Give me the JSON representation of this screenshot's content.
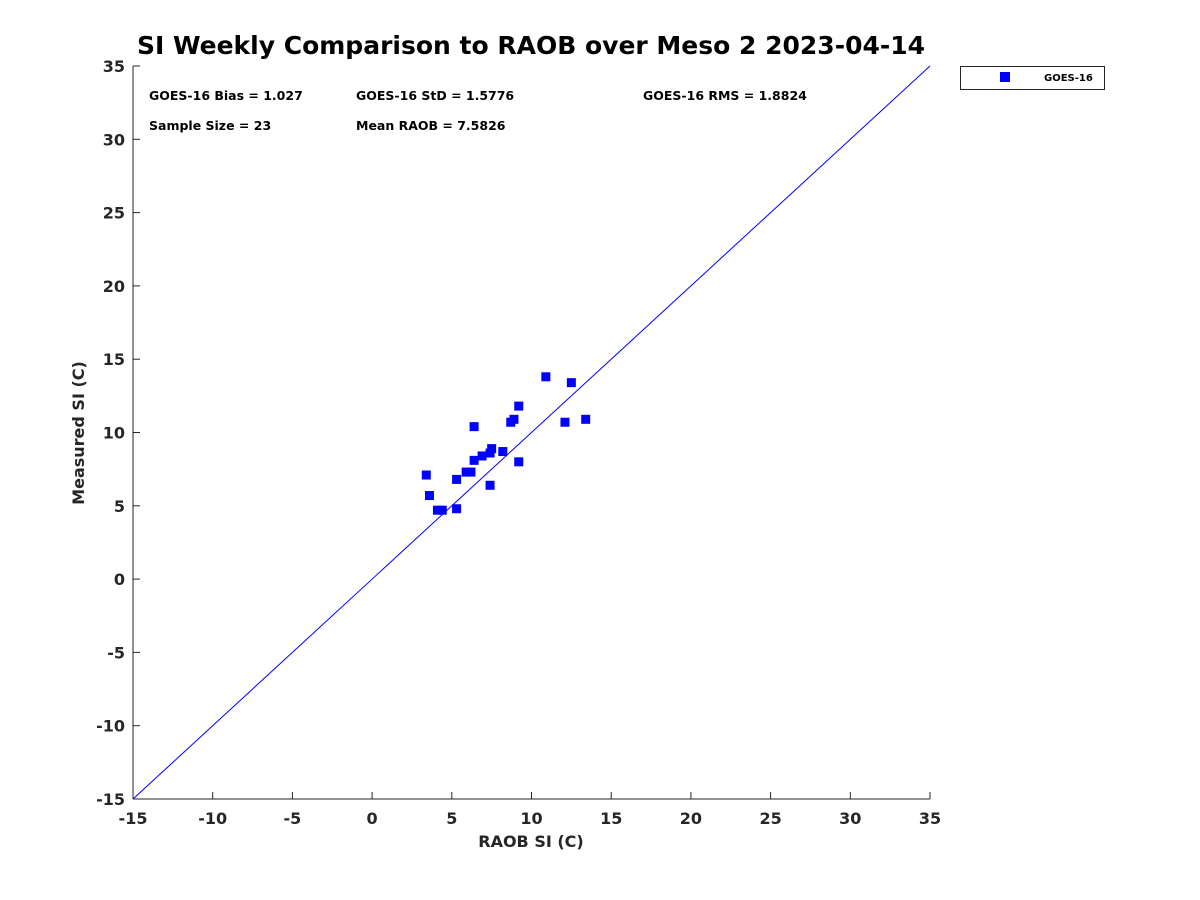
{
  "chart_data": {
    "type": "scatter",
    "title": "SI Weekly Comparison to RAOB over Meso 2 2023-04-14",
    "xlabel": "RAOB SI (C)",
    "ylabel": "Measured SI (C)",
    "xlim": [
      -15,
      35
    ],
    "ylim": [
      -15,
      35
    ],
    "xticks": [
      -15,
      -10,
      -5,
      0,
      5,
      10,
      15,
      20,
      25,
      30,
      35
    ],
    "yticks": [
      -15,
      -10,
      -5,
      0,
      5,
      10,
      15,
      20,
      25,
      30,
      35
    ],
    "grid": false,
    "legend_position": "outside-top-right",
    "reference_line": {
      "name": "one-to-one",
      "color": "#0000ff",
      "points": [
        [
          -15,
          -15
        ],
        [
          35,
          35
        ]
      ]
    },
    "stats": {
      "bias": "GOES-16 Bias = 1.027",
      "std": "GOES-16 StD = 1.5776",
      "rms": "GOES-16 RMS = 1.8824",
      "sample_size": "Sample Size = 23",
      "mean_raob": "Mean RAOB = 7.5826"
    },
    "series": [
      {
        "name": "GOES-16",
        "color": "#0000ff",
        "marker": "square",
        "points": [
          [
            3.4,
            7.1
          ],
          [
            3.6,
            5.7
          ],
          [
            4.1,
            4.7
          ],
          [
            4.4,
            4.7
          ],
          [
            5.3,
            6.8
          ],
          [
            5.3,
            4.8
          ],
          [
            5.9,
            7.3
          ],
          [
            6.2,
            7.3
          ],
          [
            6.4,
            8.1
          ],
          [
            6.4,
            10.4
          ],
          [
            6.9,
            8.4
          ],
          [
            7.4,
            8.6
          ],
          [
            7.4,
            6.4
          ],
          [
            7.5,
            8.9
          ],
          [
            8.2,
            8.7
          ],
          [
            8.7,
            10.7
          ],
          [
            8.9,
            10.9
          ],
          [
            9.2,
            11.8
          ],
          [
            9.2,
            8.0
          ],
          [
            10.9,
            13.8
          ],
          [
            12.1,
            10.7
          ],
          [
            12.5,
            13.4
          ],
          [
            13.4,
            10.9
          ]
        ]
      }
    ]
  }
}
